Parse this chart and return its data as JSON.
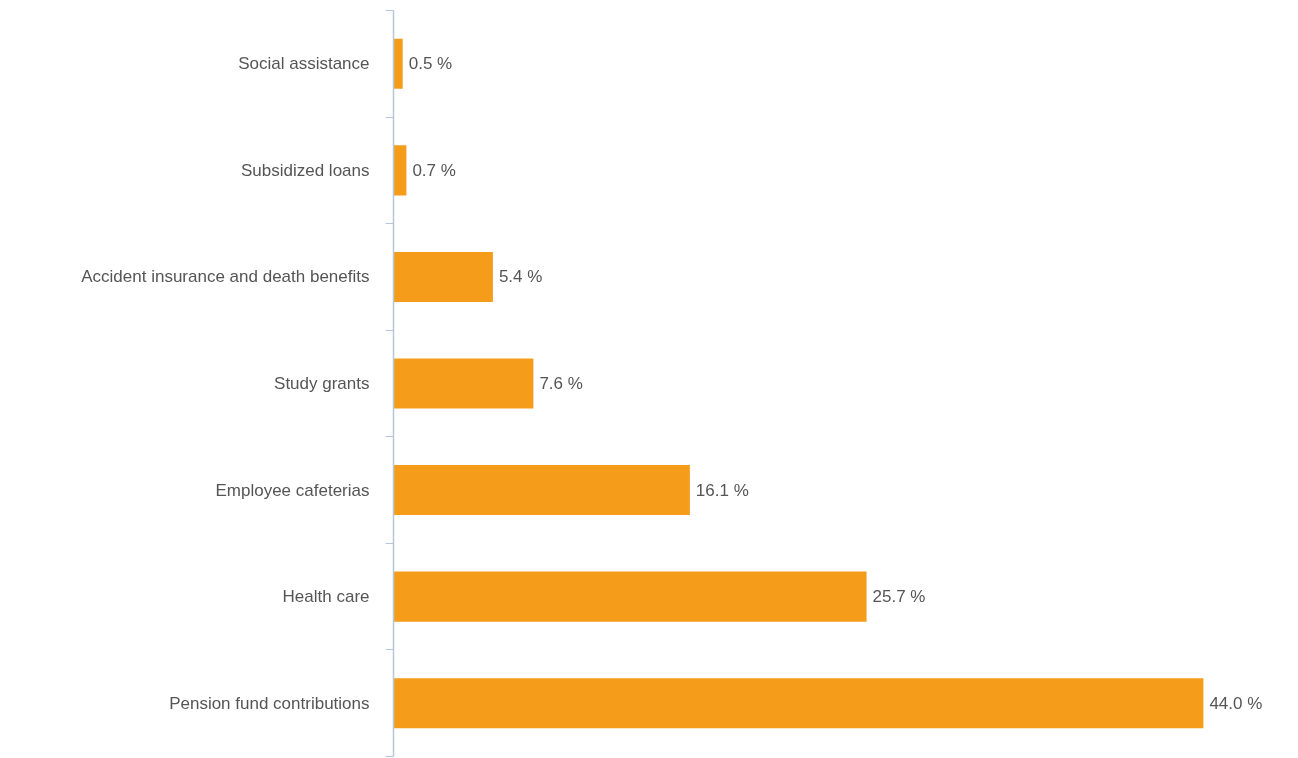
{
  "chart_data": {
    "type": "bar",
    "orientation": "horizontal",
    "categories": [
      "Social assistance",
      "Subsidized loans",
      "Accident insurance and death benefits",
      "Study grants",
      "Employee cafeterias",
      "Health care",
      "Pension fund contributions"
    ],
    "values": [
      0.5,
      0.7,
      5.4,
      7.6,
      16.1,
      25.7,
      44.0
    ],
    "value_labels": [
      "0.5 %",
      "0.7 %",
      "5.4 %",
      "7.6 %",
      "16.1 %",
      "25.7 %",
      "44.0 %"
    ],
    "color": "#f59c1a"
  }
}
